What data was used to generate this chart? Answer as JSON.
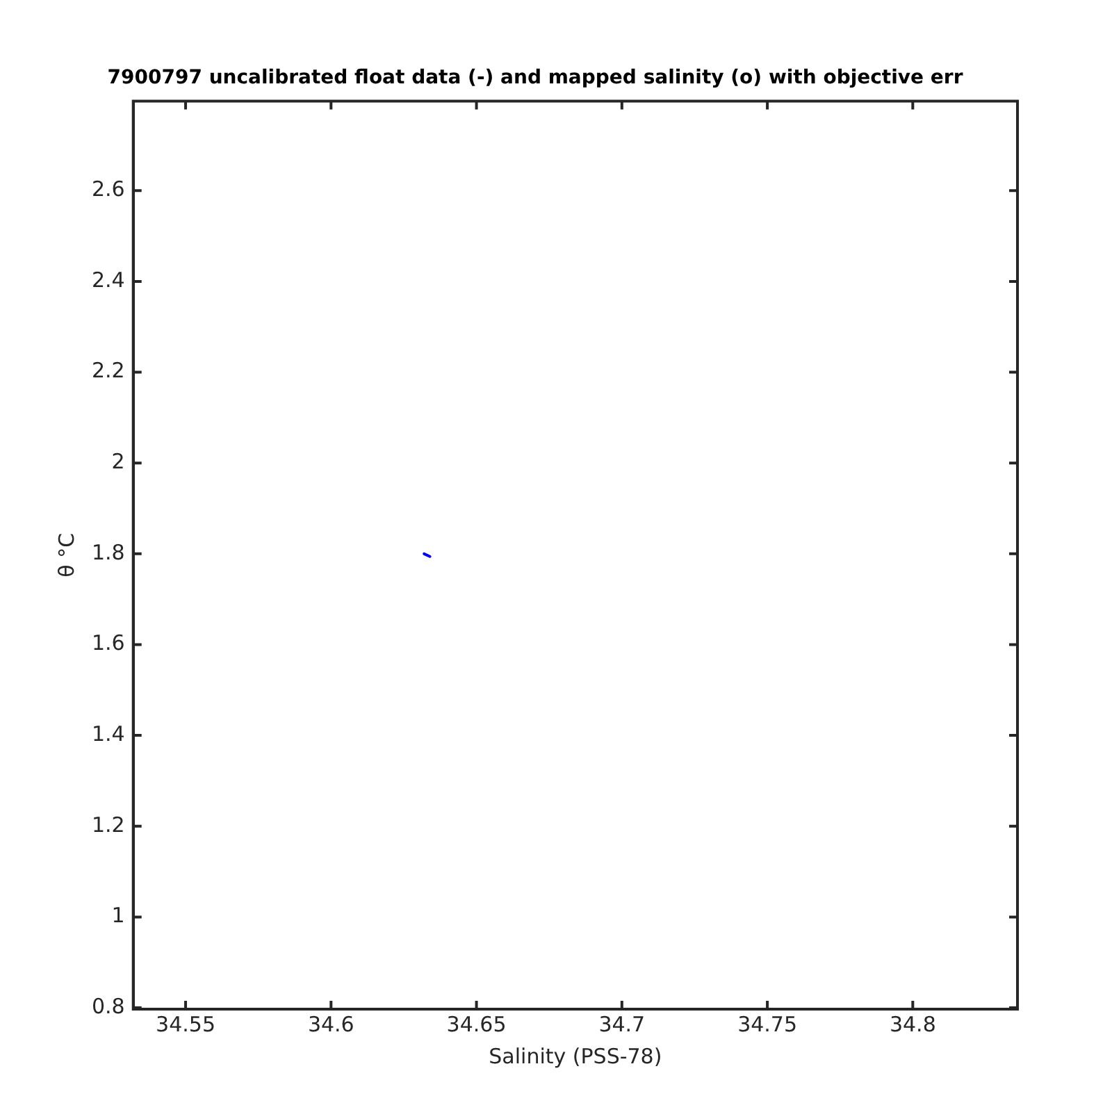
{
  "chart_data": {
    "type": "line",
    "title": "7900797 uncalibrated float data (-) and mapped salinity (o) with objective err",
    "xlabel": "Salinity (PSS-78)",
    "ylabel": "θ °C",
    "series": [
      {
        "color": "#0000ff",
        "x": [
          34.632,
          34.634
        ],
        "values": [
          1.8,
          1.794
        ]
      }
    ],
    "xlim": [
      34.532,
      34.836
    ],
    "xticks": [
      34.55,
      34.6,
      34.65,
      34.7,
      34.75,
      34.8
    ],
    "ylim": [
      0.797,
      2.797
    ],
    "yticks": [
      0.8,
      1,
      1.2,
      1.4,
      1.6,
      1.8,
      2,
      2.2,
      2.4,
      2.6
    ],
    "grid": false,
    "legend": false,
    "marker": "none"
  }
}
